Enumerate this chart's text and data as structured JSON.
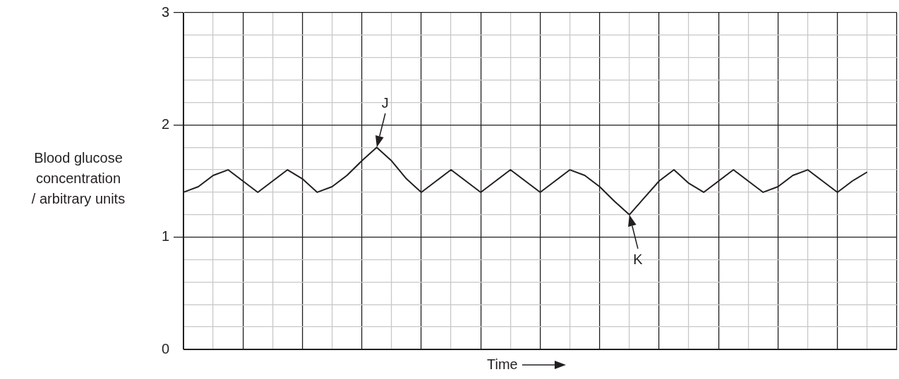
{
  "chart_data": {
    "type": "line",
    "xlabel": "Time",
    "ylabel": "Blood glucose\nconcentration\n/ arbitrary units",
    "categories": [
      null,
      null,
      null,
      null,
      null,
      null,
      null,
      null,
      null,
      null,
      null,
      null,
      null,
      null,
      null,
      null,
      null,
      null,
      null,
      null,
      null,
      null,
      null,
      null,
      null,
      null,
      null,
      null,
      null,
      null,
      null,
      null,
      null,
      null,
      null,
      null,
      null,
      null,
      null,
      null,
      null,
      null,
      null,
      null,
      null,
      null,
      null,
      null,
      null
    ],
    "series": [
      {
        "color": "#231f20",
        "values": [
          1.4,
          1.45,
          1.55,
          1.6,
          1.5,
          1.4,
          1.5,
          1.6,
          1.52,
          1.4,
          1.45,
          1.55,
          1.68,
          1.8,
          1.68,
          1.52,
          1.4,
          1.5,
          1.6,
          1.5,
          1.4,
          1.5,
          1.6,
          1.5,
          1.4,
          1.5,
          1.6,
          1.55,
          1.45,
          1.32,
          1.2,
          1.35,
          1.5,
          1.6,
          1.48,
          1.4,
          1.5,
          1.6,
          1.5,
          1.4,
          1.45,
          1.55,
          1.6,
          1.5,
          1.4,
          1.5,
          1.58,
          null,
          null
        ]
      }
    ],
    "ylim": [
      0,
      3
    ],
    "yticks": [
      0,
      {
        "value": 0.2,
        "label": null
      },
      {
        "value": 0.4,
        "label": null
      },
      {
        "value": 0.6,
        "label": null
      },
      {
        "value": 0.8,
        "label": null
      },
      1,
      {
        "value": 1.2,
        "label": null
      },
      {
        "value": 1.4,
        "label": null
      },
      {
        "value": 1.6,
        "label": null
      },
      {
        "value": 1.8,
        "label": null
      },
      2,
      {
        "value": 2.2,
        "label": null
      },
      {
        "value": 2.4,
        "label": null
      },
      {
        "value": 2.6,
        "label": null
      },
      {
        "value": 2.8,
        "label": null
      },
      3
    ],
    "tick_labels": "y",
    "grid": true,
    "marker": "none",
    "line_style": "solid",
    "annotations": [
      "J",
      "K"
    ]
  }
}
